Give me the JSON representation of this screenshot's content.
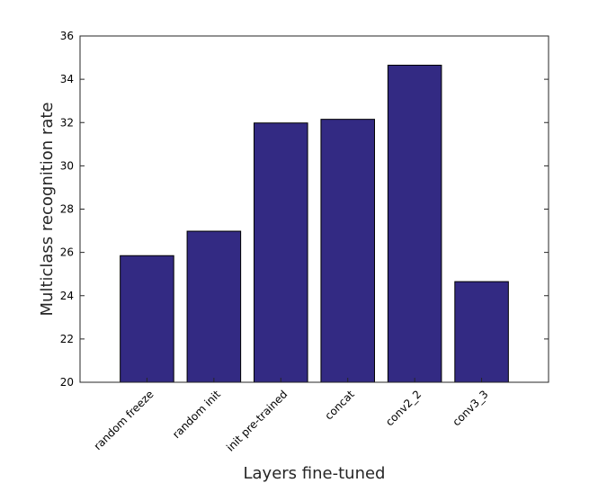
{
  "chart_data": {
    "type": "bar",
    "categories": [
      "random freeze",
      "random init",
      "init pre-trained",
      "concat",
      "conv2_2",
      "conv3_3"
    ],
    "values": [
      25.85,
      26.98,
      31.98,
      32.15,
      34.65,
      24.65
    ],
    "xlabel": "Layers fine-tuned",
    "ylabel": "Multiclass recognition rate",
    "ylim": [
      20,
      36
    ],
    "yticks": [
      20,
      22,
      24,
      26,
      28,
      30,
      32,
      34,
      36
    ],
    "bar_color": "#332a83",
    "grid": false,
    "legend": "none"
  }
}
